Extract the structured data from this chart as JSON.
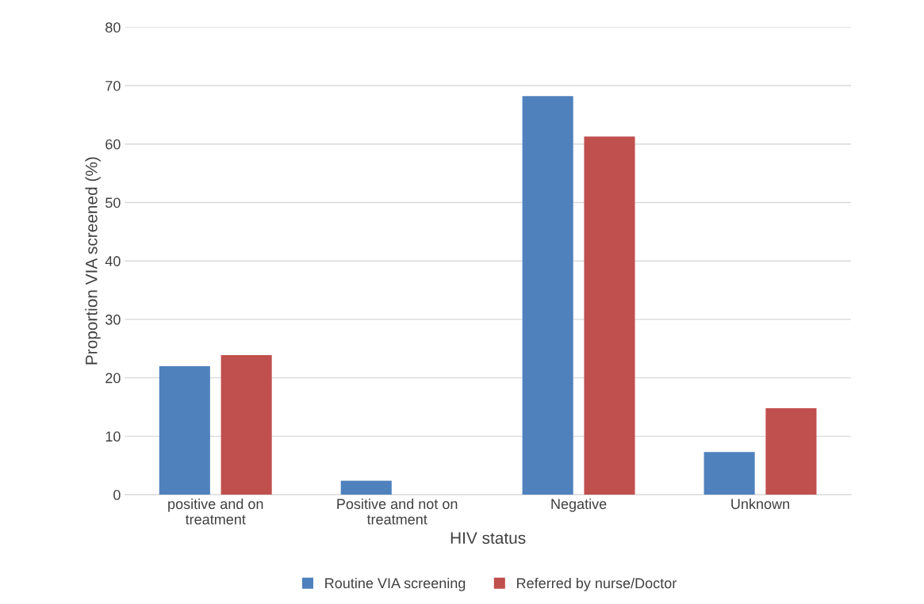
{
  "chart_data": {
    "type": "bar",
    "xlabel": "HIV status",
    "ylabel": "Proportion VIA screened (%)",
    "categories": [
      "positive and on\ntreatment",
      "Positive and not on\ntreatment",
      "Negative",
      "Unknown"
    ],
    "series": [
      {
        "name": "Routine VIA screening",
        "color": "#4f81bd",
        "values": [
          22,
          2.4,
          68.2,
          7.3
        ]
      },
      {
        "name": "Referred by nurse/Doctor",
        "color": "#c0504d",
        "values": [
          23.9,
          0,
          61.3,
          14.8
        ]
      }
    ],
    "ylim": [
      0,
      80
    ],
    "yticks": [
      0,
      10,
      20,
      30,
      40,
      50,
      60,
      70,
      80
    ],
    "grid": "y",
    "legend": "bottom"
  }
}
